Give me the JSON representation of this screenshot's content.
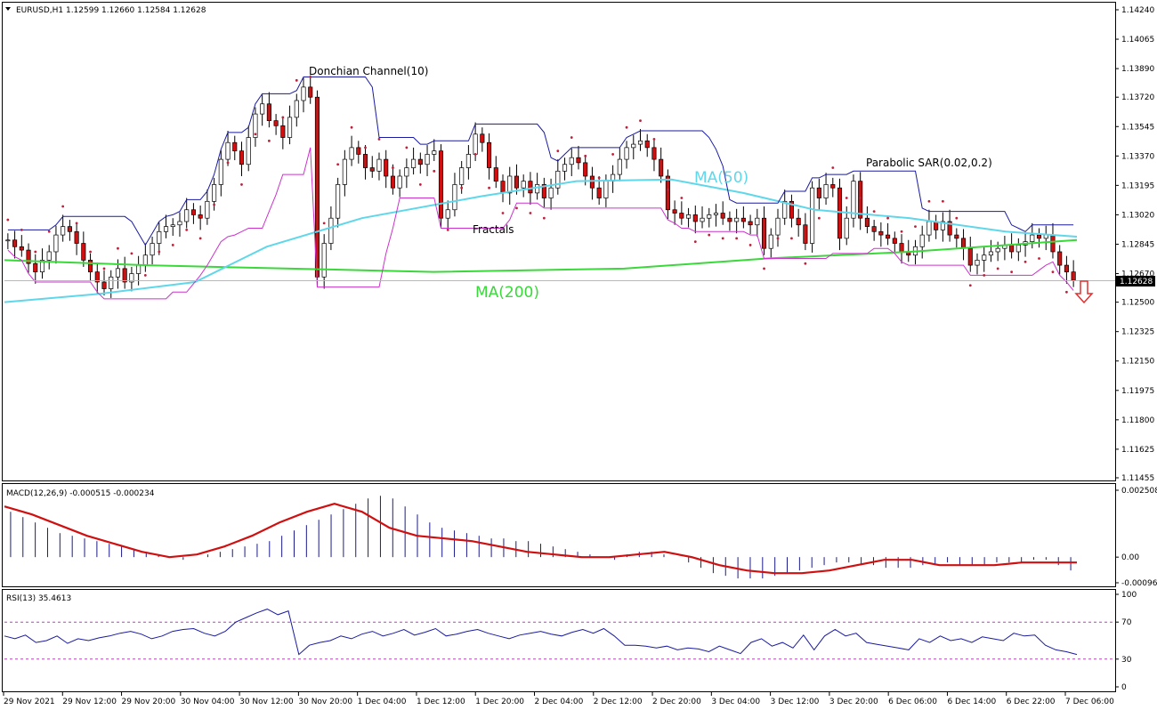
{
  "chart_data": {
    "type": "candlestick",
    "symbol_header": "EURUSD,H1  1.12599 1.12660 1.12584 1.12628",
    "last_price": "1.12628",
    "price_ticks": [
      "1.14240",
      "1.14065",
      "1.13890",
      "1.13720",
      "1.13545",
      "1.13370",
      "1.13195",
      "1.13020",
      "1.12845",
      "1.12670",
      "1.12500",
      "1.12325",
      "1.12150",
      "1.11975",
      "1.11800",
      "1.11625",
      "1.11455"
    ],
    "time_labels": [
      "29 Nov 2021",
      "29 Nov 12:00",
      "29 Nov 20:00",
      "30 Nov 04:00",
      "30 Nov 12:00",
      "30 Nov 20:00",
      "1 Dec 04:00",
      "1 Dec 12:00",
      "1 Dec 20:00",
      "2 Dec 04:00",
      "2 Dec 12:00",
      "2 Dec 20:00",
      "3 Dec 04:00",
      "3 Dec 12:00",
      "3 Dec 20:00",
      "6 Dec 06:00",
      "6 Dec 14:00",
      "6 Dec 22:00",
      "7 Dec 06:00"
    ],
    "annotations": {
      "donchian": "Donchian Channel(10)",
      "fractals": "Fractals",
      "ma50": "MA(50)",
      "ma200": "MA(200)",
      "sar": "Parabolic SAR(0.02,0.2)"
    },
    "candles_close": [
      1.1287,
      1.1283,
      1.1281,
      1.1273,
      1.1268,
      1.1275,
      1.128,
      1.129,
      1.1295,
      1.1292,
      1.1285,
      1.1275,
      1.1268,
      1.1262,
      1.1258,
      1.1265,
      1.127,
      1.1262,
      1.1267,
      1.1272,
      1.1278,
      1.1285,
      1.1292,
      1.1295,
      1.1296,
      1.1298,
      1.1305,
      1.1302,
      1.13,
      1.131,
      1.132,
      1.1335,
      1.1345,
      1.134,
      1.1332,
      1.1348,
      1.1362,
      1.1368,
      1.1358,
      1.1355,
      1.1348,
      1.136,
      1.137,
      1.1378,
      1.1372,
      1.1265,
      1.1285,
      1.13,
      1.132,
      1.1335,
      1.1342,
      1.1338,
      1.133,
      1.1328,
      1.1335,
      1.1325,
      1.1318,
      1.1325,
      1.133,
      1.1335,
      1.1332,
      1.1338,
      1.134,
      1.13,
      1.1305,
      1.132,
      1.133,
      1.1338,
      1.135,
      1.1345,
      1.133,
      1.1322,
      1.1315,
      1.1325,
      1.1318,
      1.1322,
      1.1315,
      1.132,
      1.1312,
      1.1318,
      1.1328,
      1.1332,
      1.1336,
      1.1333,
      1.1325,
      1.1318,
      1.1312,
      1.1322,
      1.1326,
      1.1335,
      1.1342,
      1.1344,
      1.1346,
      1.1342,
      1.1335,
      1.1325,
      1.1305,
      1.1303,
      1.13,
      1.1302,
      1.1298,
      1.13,
      1.1302,
      1.1303,
      1.13,
      1.1298,
      1.13,
      1.1298,
      1.1296,
      1.13,
      1.1282,
      1.129,
      1.13,
      1.131,
      1.13,
      1.1296,
      1.1285,
      1.1318,
      1.1312,
      1.132,
      1.1318,
      1.1288,
      1.13,
      1.1322,
      1.13,
      1.1295,
      1.1292,
      1.129,
      1.1288,
      1.1285,
      1.128,
      1.1278,
      1.1283,
      1.129,
      1.1298,
      1.1293,
      1.1298,
      1.129,
      1.1288,
      1.1282,
      1.1272,
      1.1275,
      1.1278,
      1.128,
      1.1282,
      1.1284,
      1.128,
      1.1284,
      1.1286,
      1.129,
      1.1288,
      1.129,
      1.128,
      1.1272,
      1.1268,
      1.1263
    ],
    "ma50_points": [
      [
        0,
        1.125
      ],
      [
        20,
        1.1255
      ],
      [
        40,
        1.1262
      ],
      [
        55,
        1.1283
      ],
      [
        75,
        1.13
      ],
      [
        100,
        1.1313
      ],
      [
        120,
        1.1322
      ],
      [
        140,
        1.1323
      ],
      [
        155,
        1.1315
      ],
      [
        170,
        1.1305
      ],
      [
        190,
        1.13
      ],
      [
        210,
        1.1292
      ],
      [
        225,
        1.1289
      ]
    ],
    "ma200_points": [
      [
        0,
        1.1275
      ],
      [
        30,
        1.1272
      ],
      [
        60,
        1.127
      ],
      [
        90,
        1.1268
      ],
      [
        130,
        1.127
      ],
      [
        160,
        1.1276
      ],
      [
        190,
        1.128
      ],
      [
        225,
        1.1287
      ]
    ],
    "macd": {
      "label": "MACD(12,26,9) -0.000515 -0.000234",
      "ticks": [
        "0.002508",
        "0.00",
        "-0.000962"
      ],
      "range": [
        -0.000962,
        0.002508
      ],
      "histogram": [
        0.0017,
        0.0015,
        0.0013,
        0.0011,
        0.0009,
        0.0008,
        0.0007,
        0.0006,
        0.0005,
        0.0004,
        0.0003,
        0.0002,
        0.0001,
        0.0,
        -0.0001,
        0.0,
        0.0001,
        0.0002,
        0.0003,
        0.0004,
        0.0005,
        0.0006,
        0.0008,
        0.001,
        0.0012,
        0.0014,
        0.0016,
        0.0018,
        0.002,
        0.0022,
        0.0023,
        0.0022,
        0.0019,
        0.0016,
        0.0013,
        0.0011,
        0.001,
        0.0009,
        0.0008,
        0.0007,
        0.0007,
        0.0006,
        0.0006,
        0.0005,
        0.0004,
        0.0003,
        0.0002,
        0.0001,
        0.0,
        -0.0001,
        0.0001,
        0.0002,
        0.0002,
        0.0001,
        0.0,
        -0.0002,
        -0.0004,
        -0.0006,
        -0.0007,
        -0.0008,
        -0.0008,
        -0.0008,
        -0.0007,
        -0.0006,
        -0.0005,
        -0.0004,
        -0.0003,
        -0.0002,
        -0.0002,
        -0.0003,
        -0.0003,
        -0.0004,
        -0.0004,
        -0.0004,
        -0.0003,
        -0.0003,
        -0.0002,
        -0.0003,
        -0.0003,
        -0.0003,
        -0.0002,
        -0.0002,
        -0.0002,
        -0.0001,
        -0.0001,
        -0.0003,
        -0.0005
      ],
      "signal": [
        0.0019,
        0.0016,
        0.0012,
        0.0008,
        0.0005,
        0.0002,
        0.0,
        0.0001,
        0.0004,
        0.0008,
        0.0013,
        0.0017,
        0.002,
        0.0017,
        0.0011,
        0.0008,
        0.0007,
        0.0006,
        0.0004,
        0.0002,
        0.0001,
        0.0,
        0.0,
        0.0001,
        0.0002,
        0.0,
        -0.0003,
        -0.0005,
        -0.0006,
        -0.0006,
        -0.0005,
        -0.0003,
        -0.0001,
        -0.0001,
        -0.0003,
        -0.0003,
        -0.0003,
        -0.0002,
        -0.0002,
        -0.0002
      ]
    },
    "rsi": {
      "label": "RSI(13) 35.4613",
      "ticks": [
        "100",
        "70",
        "30",
        "0"
      ],
      "levels": [
        70,
        30
      ],
      "values": [
        55,
        52,
        56,
        48,
        50,
        55,
        47,
        52,
        50,
        53,
        55,
        58,
        60,
        57,
        52,
        55,
        60,
        62,
        63,
        58,
        55,
        60,
        70,
        75,
        80,
        84,
        78,
        82,
        35,
        45,
        48,
        50,
        55,
        52,
        57,
        60,
        55,
        58,
        62,
        56,
        59,
        63,
        55,
        57,
        60,
        62,
        58,
        55,
        52,
        56,
        58,
        60,
        57,
        55,
        59,
        62,
        58,
        63,
        55,
        45,
        45,
        44,
        42,
        44,
        40,
        42,
        41,
        38,
        44,
        40,
        36,
        48,
        52,
        44,
        48,
        42,
        56,
        40,
        55,
        62,
        55,
        58,
        48,
        46,
        44,
        42,
        40,
        52,
        48,
        55,
        50,
        52,
        48,
        54,
        52,
        50,
        58,
        55,
        56,
        45,
        40,
        38,
        35
      ]
    }
  }
}
